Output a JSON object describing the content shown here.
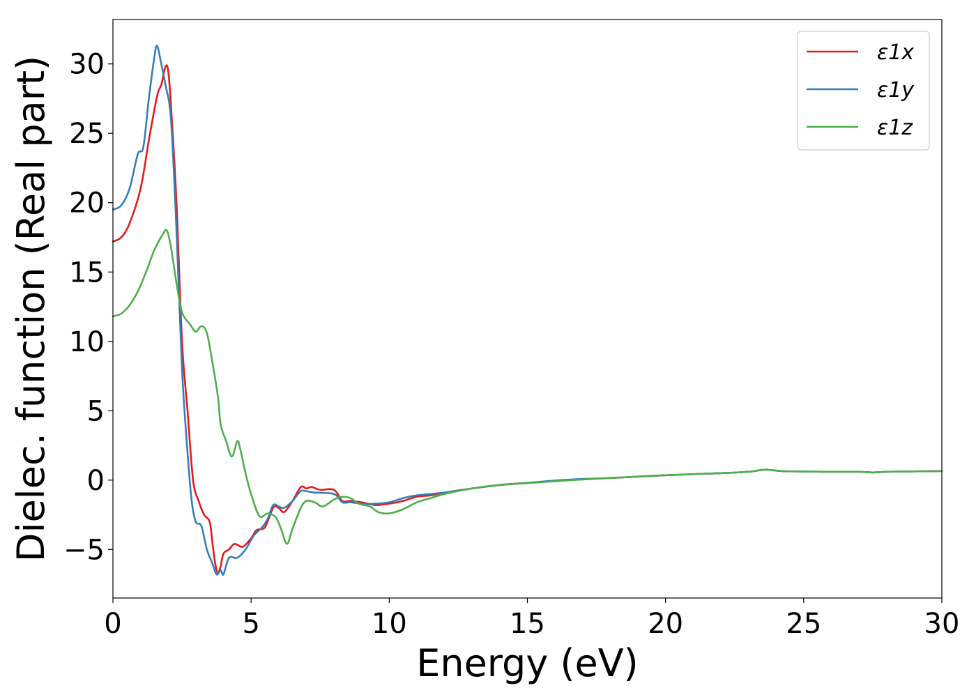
{
  "chart_data": {
    "type": "line",
    "xlabel": "Energy (eV)",
    "ylabel": "Dielec. function (Real part)",
    "xlim": [
      0,
      30
    ],
    "ylim": [
      -8.5,
      33.2
    ],
    "xticks": [
      0,
      5,
      10,
      15,
      20,
      25,
      30
    ],
    "yticks": [
      -5,
      0,
      5,
      10,
      15,
      20,
      25,
      30
    ],
    "xtick_labels": [
      "0",
      "5",
      "10",
      "15",
      "20",
      "25",
      "30"
    ],
    "ytick_labels": [
      "−5",
      "0",
      "5",
      "10",
      "15",
      "20",
      "25",
      "30"
    ],
    "grid": false,
    "legend_position": "top-right",
    "series": [
      {
        "name": "ε1x",
        "color": "#e41a1c",
        "points": [
          [
            0,
            17.2
          ],
          [
            0.3,
            17.5
          ],
          [
            0.6,
            18.5
          ],
          [
            1.0,
            21.0
          ],
          [
            1.3,
            24.5
          ],
          [
            1.6,
            27.7
          ],
          [
            1.75,
            28.5
          ],
          [
            1.9,
            29.8
          ],
          [
            2.0,
            29.5
          ],
          [
            2.1,
            27.0
          ],
          [
            2.3,
            20.0
          ],
          [
            2.5,
            10.0
          ],
          [
            2.7,
            5.0
          ],
          [
            2.9,
            0.0
          ],
          [
            3.1,
            -1.5
          ],
          [
            3.3,
            -2.5
          ],
          [
            3.5,
            -3.0
          ],
          [
            3.6,
            -4.5
          ],
          [
            3.7,
            -6.0
          ],
          [
            3.8,
            -6.7
          ],
          [
            3.9,
            -6.2
          ],
          [
            4.0,
            -5.3
          ],
          [
            4.2,
            -5.0
          ],
          [
            4.4,
            -4.6
          ],
          [
            4.7,
            -4.8
          ],
          [
            5.0,
            -4.2
          ],
          [
            5.2,
            -3.6
          ],
          [
            5.5,
            -3.4
          ],
          [
            5.8,
            -2.0
          ],
          [
            6.0,
            -2.0
          ],
          [
            6.2,
            -2.3
          ],
          [
            6.5,
            -1.5
          ],
          [
            6.8,
            -0.5
          ],
          [
            7.0,
            -0.6
          ],
          [
            7.2,
            -0.5
          ],
          [
            7.5,
            -0.7
          ],
          [
            8.0,
            -0.7
          ],
          [
            8.3,
            -1.5
          ],
          [
            8.6,
            -1.5
          ],
          [
            9.0,
            -1.6
          ],
          [
            9.5,
            -1.8
          ],
          [
            10.0,
            -1.7
          ],
          [
            10.5,
            -1.5
          ],
          [
            11.0,
            -1.2
          ],
          [
            11.5,
            -1.1
          ],
          [
            12.0,
            -0.9
          ],
          [
            13.0,
            -0.6
          ],
          [
            14.0,
            -0.35
          ],
          [
            15.0,
            -0.2
          ],
          [
            16.0,
            -0.05
          ],
          [
            17.0,
            0.05
          ],
          [
            18.0,
            0.15
          ],
          [
            20.0,
            0.35
          ],
          [
            22.0,
            0.5
          ],
          [
            23.0,
            0.6
          ],
          [
            23.6,
            0.75
          ],
          [
            24.2,
            0.65
          ],
          [
            25.0,
            0.62
          ],
          [
            26.0,
            0.6
          ],
          [
            27.0,
            0.6
          ],
          [
            27.5,
            0.55
          ],
          [
            28.0,
            0.6
          ],
          [
            29.0,
            0.63
          ],
          [
            30.0,
            0.65
          ]
        ]
      },
      {
        "name": "ε1y",
        "color": "#377eb8",
        "points": [
          [
            0,
            19.5
          ],
          [
            0.3,
            19.8
          ],
          [
            0.6,
            21.0
          ],
          [
            0.9,
            23.5
          ],
          [
            1.1,
            24.0
          ],
          [
            1.3,
            27.5
          ],
          [
            1.5,
            30.5
          ],
          [
            1.6,
            31.3
          ],
          [
            1.75,
            30.0
          ],
          [
            1.9,
            28.5
          ],
          [
            2.1,
            26.0
          ],
          [
            2.3,
            18.0
          ],
          [
            2.5,
            8.0
          ],
          [
            2.7,
            2.0
          ],
          [
            2.85,
            -1.5
          ],
          [
            3.0,
            -3.0
          ],
          [
            3.2,
            -3.3
          ],
          [
            3.4,
            -5.0
          ],
          [
            3.6,
            -6.0
          ],
          [
            3.75,
            -6.8
          ],
          [
            3.9,
            -6.5
          ],
          [
            4.0,
            -6.8
          ],
          [
            4.2,
            -5.6
          ],
          [
            4.5,
            -5.6
          ],
          [
            4.8,
            -5.0
          ],
          [
            5.1,
            -4.0
          ],
          [
            5.4,
            -3.4
          ],
          [
            5.6,
            -2.8
          ],
          [
            5.8,
            -1.8
          ],
          [
            6.0,
            -1.9
          ],
          [
            6.2,
            -2.0
          ],
          [
            6.5,
            -1.5
          ],
          [
            6.8,
            -0.8
          ],
          [
            7.0,
            -0.8
          ],
          [
            7.3,
            -0.9
          ],
          [
            8.0,
            -1.0
          ],
          [
            8.3,
            -1.6
          ],
          [
            8.6,
            -1.6
          ],
          [
            9.0,
            -1.7
          ],
          [
            9.5,
            -1.7
          ],
          [
            10.0,
            -1.6
          ],
          [
            10.5,
            -1.3
          ],
          [
            11.0,
            -1.1
          ],
          [
            12.0,
            -0.9
          ],
          [
            13.0,
            -0.6
          ],
          [
            14.0,
            -0.35
          ],
          [
            15.0,
            -0.2
          ],
          [
            16.0,
            -0.03
          ],
          [
            17.0,
            0.08
          ],
          [
            18.0,
            0.15
          ],
          [
            20.0,
            0.35
          ],
          [
            22.0,
            0.5
          ],
          [
            23.0,
            0.6
          ],
          [
            23.6,
            0.75
          ],
          [
            24.2,
            0.65
          ],
          [
            25.0,
            0.62
          ],
          [
            26.0,
            0.6
          ],
          [
            27.0,
            0.6
          ],
          [
            27.5,
            0.55
          ],
          [
            28.0,
            0.6
          ],
          [
            29.0,
            0.63
          ],
          [
            30.0,
            0.65
          ]
        ]
      },
      {
        "name": "ε1z",
        "color": "#4daf4a",
        "points": [
          [
            0,
            11.8
          ],
          [
            0.3,
            12.0
          ],
          [
            0.6,
            12.6
          ],
          [
            0.9,
            13.6
          ],
          [
            1.2,
            15.0
          ],
          [
            1.5,
            16.6
          ],
          [
            1.8,
            17.7
          ],
          [
            1.95,
            18.0
          ],
          [
            2.1,
            16.8
          ],
          [
            2.3,
            14.2
          ],
          [
            2.5,
            12.1
          ],
          [
            2.8,
            11.2
          ],
          [
            3.0,
            10.7
          ],
          [
            3.2,
            11.1
          ],
          [
            3.4,
            10.6
          ],
          [
            3.6,
            8.5
          ],
          [
            3.8,
            6.0
          ],
          [
            3.9,
            4.0
          ],
          [
            4.1,
            2.8
          ],
          [
            4.3,
            1.7
          ],
          [
            4.5,
            2.8
          ],
          [
            4.6,
            2.3
          ],
          [
            4.8,
            0.5
          ],
          [
            5.0,
            -1.0
          ],
          [
            5.3,
            -2.6
          ],
          [
            5.6,
            -2.4
          ],
          [
            5.9,
            -2.7
          ],
          [
            6.1,
            -3.6
          ],
          [
            6.3,
            -4.6
          ],
          [
            6.5,
            -3.5
          ],
          [
            6.8,
            -2.0
          ],
          [
            7.0,
            -1.5
          ],
          [
            7.3,
            -1.6
          ],
          [
            7.6,
            -1.9
          ],
          [
            8.0,
            -1.4
          ],
          [
            8.3,
            -1.2
          ],
          [
            8.6,
            -1.3
          ],
          [
            8.9,
            -1.7
          ],
          [
            9.3,
            -1.9
          ],
          [
            9.6,
            -2.3
          ],
          [
            10.0,
            -2.4
          ],
          [
            10.5,
            -2.1
          ],
          [
            11.0,
            -1.6
          ],
          [
            11.5,
            -1.3
          ],
          [
            12.0,
            -1.0
          ],
          [
            13.0,
            -0.6
          ],
          [
            14.0,
            -0.35
          ],
          [
            15.0,
            -0.22
          ],
          [
            16.0,
            -0.08
          ],
          [
            17.0,
            0.05
          ],
          [
            18.0,
            0.15
          ],
          [
            20.0,
            0.35
          ],
          [
            22.0,
            0.5
          ],
          [
            23.0,
            0.6
          ],
          [
            23.6,
            0.75
          ],
          [
            24.2,
            0.65
          ],
          [
            25.0,
            0.62
          ],
          [
            26.0,
            0.6
          ],
          [
            27.0,
            0.6
          ],
          [
            27.5,
            0.55
          ],
          [
            28.0,
            0.6
          ],
          [
            29.0,
            0.63
          ],
          [
            30.0,
            0.65
          ]
        ]
      }
    ]
  }
}
